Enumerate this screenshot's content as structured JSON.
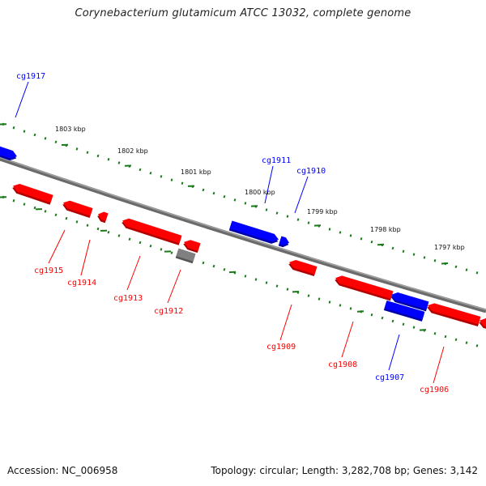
{
  "title": "Corynebacterium glutamicum ATCC 13032, complete genome",
  "footer": {
    "accession": "Accession: NC_006958",
    "summary": "Topology: circular; Length: 3,282,708 bp; Genes: 3,142"
  },
  "colors": {
    "plus_strand": "#0000ff",
    "minus_strand": "#ff0000",
    "other": "#808080",
    "ruler": "#1a7a1a",
    "backbone": "#808080"
  },
  "ruler_labels": [
    "1803 kbp",
    "1802 kbp",
    "1801 kbp",
    "1800 kbp",
    "1799 kbp",
    "1798 kbp",
    "1797 kbp"
  ],
  "genes": [
    {
      "id": "cg1917",
      "strand": "plus"
    },
    {
      "id": "cg1915",
      "strand": "minus"
    },
    {
      "id": "cg1914",
      "strand": "minus"
    },
    {
      "id": "cg1913",
      "strand": "minus"
    },
    {
      "id": "cg1912",
      "strand": "minus"
    },
    {
      "id": "cg1911",
      "strand": "plus"
    },
    {
      "id": "cg1910",
      "strand": "plus"
    },
    {
      "id": "cg1909",
      "strand": "minus"
    },
    {
      "id": "cg1908",
      "strand": "minus"
    },
    {
      "id": "cg1907",
      "strand": "plus"
    },
    {
      "id": "cg1906",
      "strand": "minus"
    }
  ]
}
